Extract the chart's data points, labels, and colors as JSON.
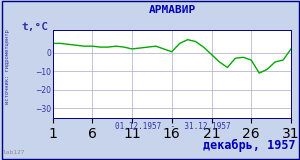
{
  "title": "АРМАВИР",
  "ylabel": "t,°C",
  "xlabel_range": "01.12.1957  -  31.12.1957",
  "bottom_label": "декабрь, 1957",
  "watermark": "lab127",
  "source_text": "источник: гидрометцентр",
  "ylim": [
    -35,
    12
  ],
  "yticks": [
    0,
    -10,
    -20,
    -30
  ],
  "xlim": [
    1,
    31
  ],
  "line_color": "#00aa00",
  "plot_bg": "#ffffff",
  "outer_bg": "#c8d4ec",
  "title_color": "#0000bb",
  "bottom_label_color": "#0000bb",
  "label_color": "#3333aa",
  "temperatures": [
    5,
    5,
    4.5,
    4,
    3.5,
    3.5,
    3,
    3,
    3.5,
    3,
    2,
    2.5,
    3,
    3.5,
    2,
    0.5,
    5,
    7,
    6,
    3,
    -1,
    -5,
    -8,
    -3,
    -2.5,
    -4,
    -11,
    -9,
    -5,
    -4,
    2
  ]
}
